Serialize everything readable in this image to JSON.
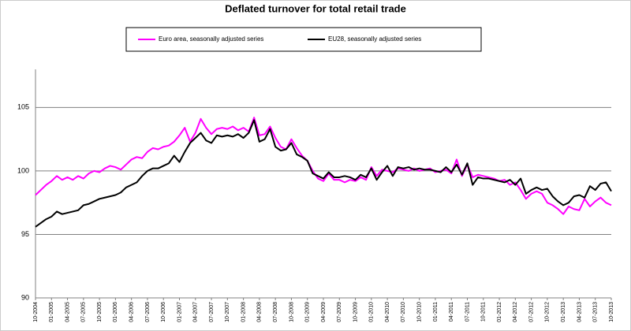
{
  "chart_data": {
    "type": "line",
    "title": "Deflated turnover for total retail trade",
    "categories": [
      "10-2004",
      null,
      null,
      "01-2005",
      null,
      null,
      "04-2005",
      null,
      null,
      "07-2005",
      null,
      null,
      "10-2005",
      null,
      null,
      "01-2006",
      null,
      null,
      "04-2006",
      null,
      null,
      "07-2006",
      null,
      null,
      "10-2006",
      null,
      null,
      "01-2007",
      null,
      null,
      "04-2007",
      null,
      null,
      "07-2007",
      null,
      null,
      "10-2007",
      null,
      null,
      "01-2008",
      null,
      null,
      "04-2008",
      null,
      null,
      "07-2008",
      null,
      null,
      "10-2008",
      null,
      null,
      "01-2009",
      null,
      null,
      "04-2009",
      null,
      null,
      "07-2009",
      null,
      null,
      "10-2009",
      null,
      null,
      "01-2010",
      null,
      null,
      "04-2010",
      null,
      null,
      "07-2010",
      null,
      null,
      "10-2010",
      null,
      null,
      "01-2011",
      null,
      null,
      "04-2011",
      null,
      null,
      "07-2011",
      null,
      null,
      "10-2011",
      null,
      null,
      "01-2012",
      null,
      null,
      "04-2012",
      null,
      null,
      "07-2012",
      null,
      null,
      "10-2012",
      null,
      null,
      "01-2013",
      null,
      null,
      "04-2013",
      null,
      null,
      "07-2013",
      null,
      null,
      "10-2013"
    ],
    "series": [
      {
        "name": "Euro area, seasonally adjusted series",
        "color": "#ff00ff",
        "values": [
          98.1,
          98.5,
          98.9,
          99.2,
          99.6,
          99.3,
          99.5,
          99.3,
          99.6,
          99.4,
          99.8,
          100.0,
          99.9,
          100.2,
          100.4,
          100.3,
          100.1,
          100.5,
          100.9,
          101.1,
          101.0,
          101.5,
          101.8,
          101.7,
          101.9,
          102.0,
          102.3,
          102.8,
          103.4,
          102.3,
          103.0,
          104.1,
          103.4,
          102.9,
          103.3,
          103.4,
          103.3,
          103.5,
          103.2,
          103.4,
          103.1,
          104.2,
          102.8,
          102.9,
          103.5,
          102.6,
          101.9,
          101.7,
          102.5,
          101.8,
          101.2,
          100.8,
          100.0,
          99.4,
          99.2,
          99.8,
          99.3,
          99.3,
          99.1,
          99.3,
          99.2,
          99.5,
          99.3,
          100.3,
          99.6,
          100.1,
          100.0,
          99.9,
          100.2,
          100.1,
          100.0,
          100.2,
          100.0,
          100.1,
          100.2,
          99.9,
          100.0,
          100.1,
          99.8,
          100.9,
          99.6,
          100.5,
          99.5,
          99.7,
          99.6,
          99.5,
          99.4,
          99.2,
          99.3,
          98.9,
          99.1,
          98.5,
          97.8,
          98.2,
          98.4,
          98.2,
          97.5,
          97.3,
          97.0,
          96.6,
          97.2,
          97.0,
          96.9,
          97.8,
          97.2,
          97.6,
          97.9,
          97.5,
          97.3
        ]
      },
      {
        "name": "EU28, seasonally adjusted series",
        "color": "#000000",
        "values": [
          95.6,
          95.9,
          96.2,
          96.4,
          96.8,
          96.6,
          96.7,
          96.8,
          96.9,
          97.3,
          97.4,
          97.6,
          97.8,
          97.9,
          98.0,
          98.1,
          98.3,
          98.7,
          98.9,
          99.1,
          99.6,
          100.0,
          100.2,
          100.2,
          100.4,
          100.6,
          101.2,
          100.7,
          101.5,
          102.2,
          102.6,
          103.0,
          102.4,
          102.2,
          102.8,
          102.7,
          102.8,
          102.7,
          102.9,
          102.6,
          103.0,
          104.0,
          102.3,
          102.5,
          103.3,
          101.9,
          101.6,
          101.7,
          102.2,
          101.3,
          101.1,
          100.8,
          99.8,
          99.6,
          99.4,
          99.9,
          99.5,
          99.5,
          99.6,
          99.5,
          99.3,
          99.7,
          99.5,
          100.2,
          99.3,
          99.9,
          100.4,
          99.6,
          100.3,
          100.2,
          100.3,
          100.1,
          100.2,
          100.1,
          100.1,
          100.0,
          99.9,
          100.3,
          99.9,
          100.5,
          99.7,
          100.6,
          98.9,
          99.5,
          99.4,
          99.4,
          99.3,
          99.2,
          99.1,
          99.3,
          98.9,
          99.4,
          98.2,
          98.5,
          98.7,
          98.5,
          98.6,
          98.0,
          97.6,
          97.3,
          97.5,
          98.0,
          98.1,
          97.9,
          98.8,
          98.5,
          99.0,
          99.1,
          98.4
        ]
      }
    ],
    "ylim": [
      90,
      108
    ],
    "yticks": [
      90,
      95,
      100,
      105
    ],
    "grid": true,
    "legend": "top"
  }
}
